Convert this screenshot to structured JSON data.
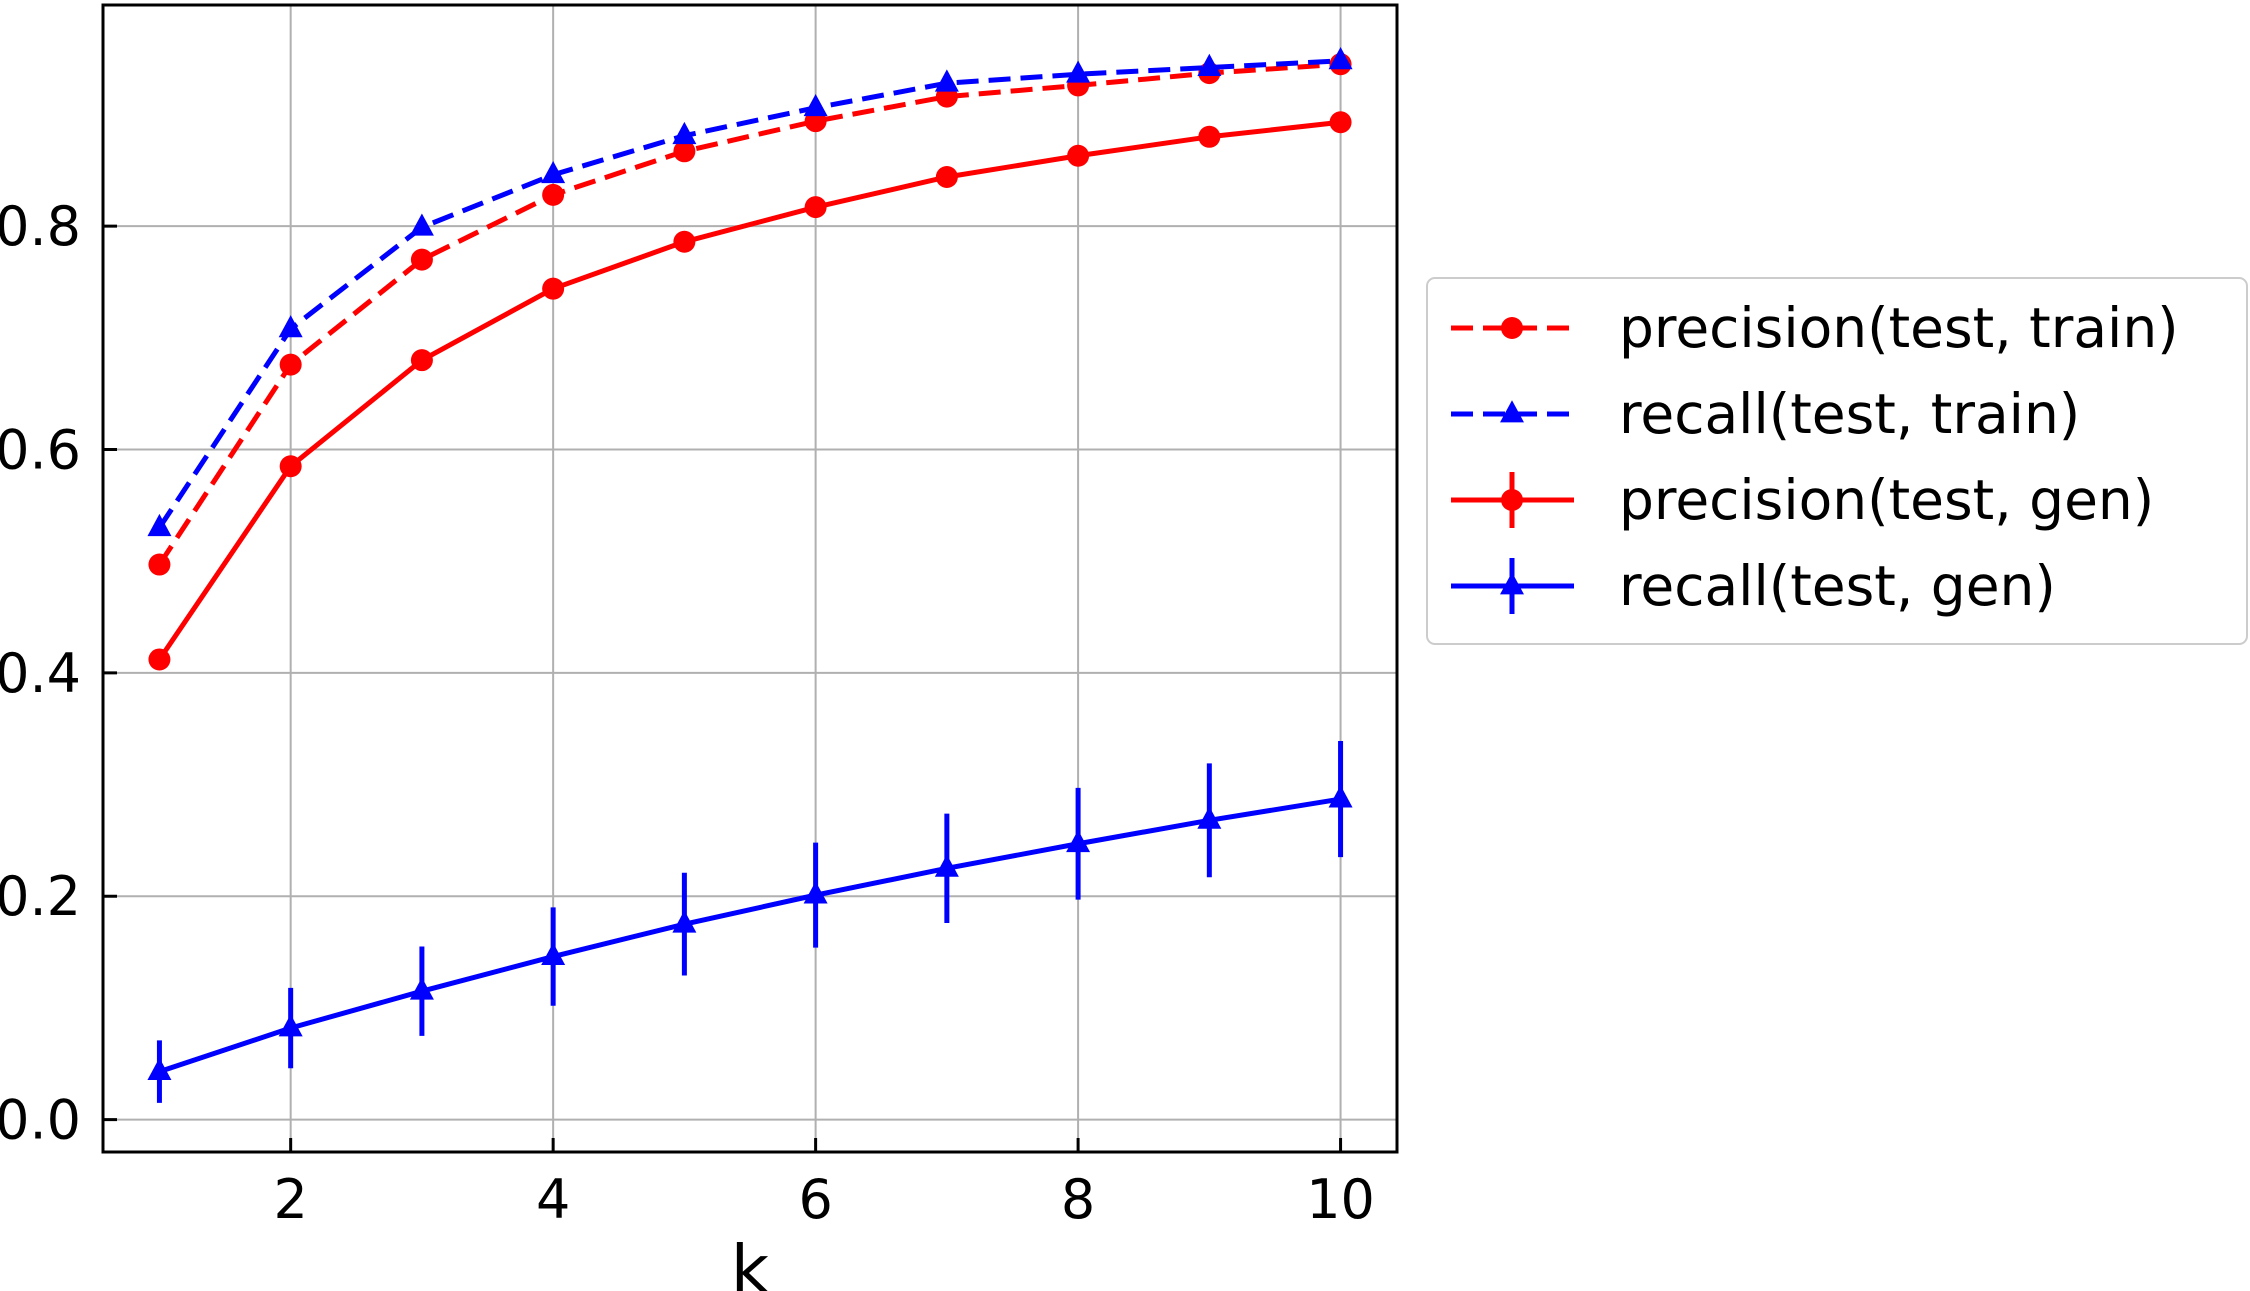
{
  "chart_data": {
    "type": "line",
    "title": "",
    "xlabel": "k",
    "ylabel": "",
    "xlim": [
      0.57,
      10.43
    ],
    "ylim": [
      -0.029,
      0.998
    ],
    "xticks": [
      2,
      4,
      6,
      8,
      10
    ],
    "xtick_labels": [
      "2",
      "4",
      "6",
      "8",
      "10"
    ],
    "yticks": [
      0.0,
      0.2,
      0.4,
      0.6,
      0.8
    ],
    "ytick_labels": [
      "0.0",
      "0.2",
      "0.4",
      "0.6",
      "0.8"
    ],
    "grid": true,
    "legend_position": "outside-right",
    "x": [
      1,
      2,
      3,
      4,
      5,
      6,
      7,
      8,
      9,
      10
    ],
    "series": [
      {
        "name": "precision(test, train)",
        "color": "#ff0000",
        "linestyle": "dashed",
        "marker": "circle",
        "values": [
          0.497,
          0.676,
          0.77,
          0.828,
          0.867,
          0.894,
          0.916,
          0.926,
          0.937,
          0.945
        ],
        "errors": null
      },
      {
        "name": "recall(test, train)",
        "color": "#0000ff",
        "linestyle": "dashed",
        "marker": "triangle",
        "values": [
          0.53,
          0.708,
          0.799,
          0.846,
          0.881,
          0.906,
          0.928,
          0.936,
          0.942,
          0.948
        ],
        "errors": null
      },
      {
        "name": "precision(test, gen)",
        "color": "#ff0000",
        "linestyle": "solid",
        "marker": "circle",
        "values": [
          0.412,
          0.585,
          0.68,
          0.744,
          0.786,
          0.817,
          0.844,
          0.863,
          0.88,
          0.893
        ],
        "errors": [
          0.003,
          0.003,
          0.003,
          0.003,
          0.003,
          0.003,
          0.003,
          0.003,
          0.003,
          0.003
        ]
      },
      {
        "name": "recall(test, gen)",
        "color": "#0000ff",
        "linestyle": "solid",
        "marker": "triangle",
        "values": [
          0.043,
          0.082,
          0.115,
          0.146,
          0.175,
          0.201,
          0.225,
          0.247,
          0.268,
          0.287
        ],
        "errors": [
          0.028,
          0.036,
          0.04,
          0.044,
          0.046,
          0.047,
          0.049,
          0.05,
          0.051,
          0.052
        ]
      }
    ]
  }
}
